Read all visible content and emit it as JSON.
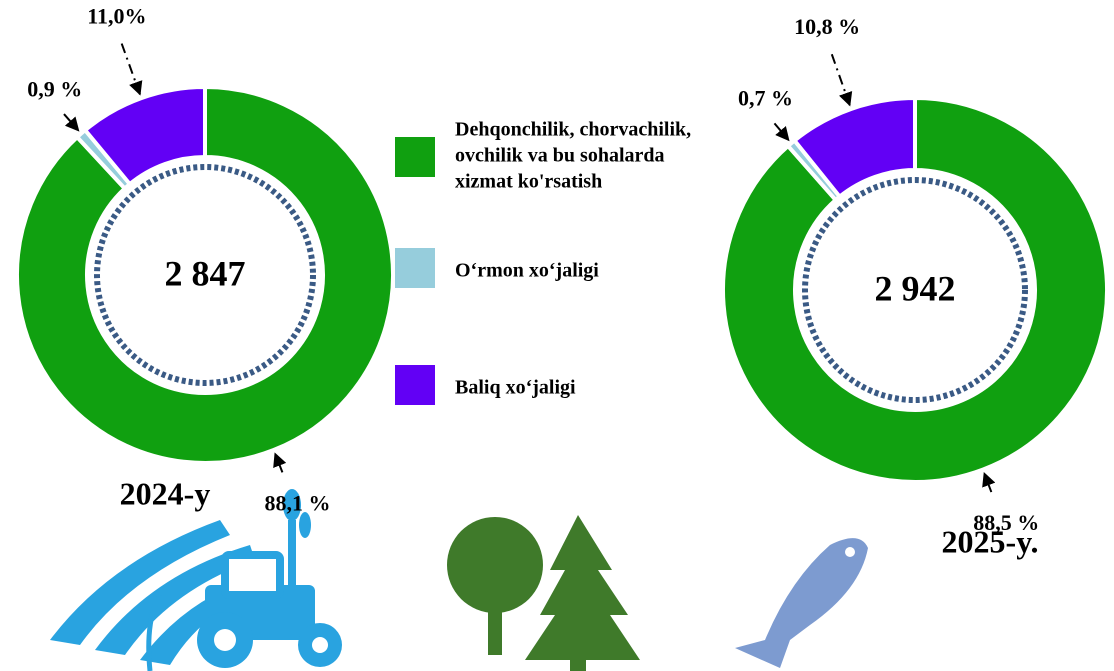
{
  "legend": {
    "labels": [
      [
        "Dehqonchilik, chorvachilik,",
        "ovchilik va bu sohalarda",
        "xizmat ko'rsatish"
      ],
      [
        "O‘rmon xo‘jaligi"
      ],
      [
        "Baliq xo‘jaligi"
      ]
    ],
    "colors": [
      "#10a010",
      "#96cddc",
      "#6200f5"
    ]
  },
  "chart_data": [
    {
      "type": "pie",
      "donut": true,
      "title": "2024-y",
      "center_label": "2 847",
      "values": [
        88.1,
        0.9,
        11.0
      ],
      "value_labels": [
        "88,1 %",
        "0,9 %",
        "11,0%"
      ]
    },
    {
      "type": "pie",
      "donut": true,
      "title": "2025-y.",
      "center_label": "2 942",
      "values": [
        88.5,
        0.7,
        10.8
      ],
      "value_labels": [
        "88,5 %",
        "0,7 %",
        "10,8 %"
      ]
    }
  ]
}
